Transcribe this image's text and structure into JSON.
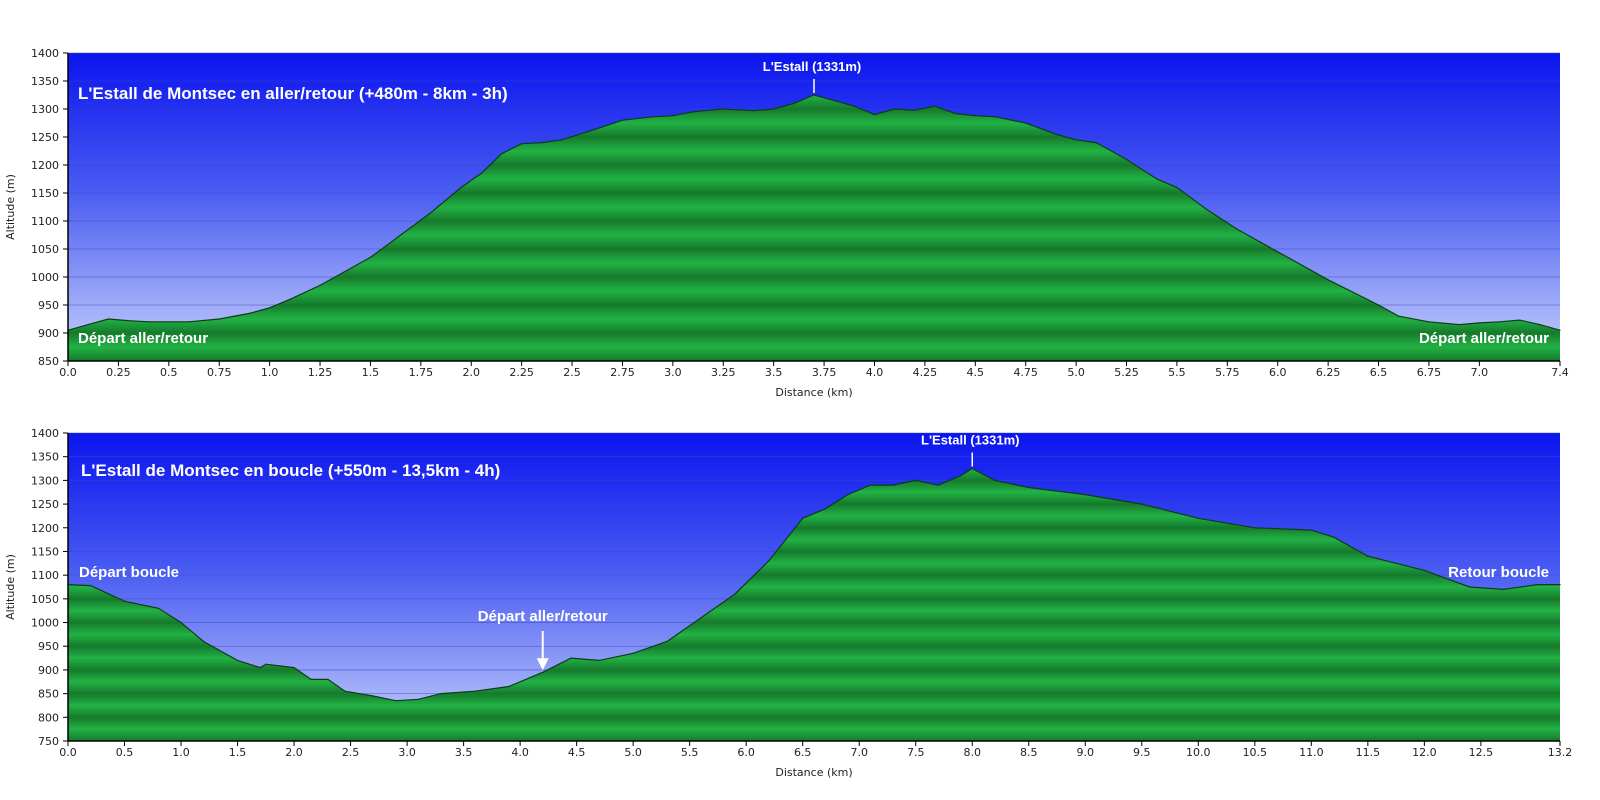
{
  "chart_data": [
    {
      "type": "area",
      "title": "L'Estall de Montsec en aller/retour (+480m - 8km - 3h)",
      "xlabel": "Distance    (km)",
      "ylabel": "Altitude (m)",
      "xlim": [
        0,
        7.4
      ],
      "ylim": [
        850,
        1400
      ],
      "xticks": [
        "0.0",
        "0.25",
        "0.5",
        "0.75",
        "1.0",
        "1.25",
        "1.5",
        "1.75",
        "2.0",
        "2.25",
        "2.5",
        "2.75",
        "3.0",
        "3.25",
        "3.5",
        "3.75",
        "4.0",
        "4.25",
        "4.5",
        "4.75",
        "5.0",
        "5.25",
        "5.5",
        "5.75",
        "6.0",
        "6.25",
        "6.5",
        "6.75",
        "7.0",
        "7.4"
      ],
      "yticks": [
        "850",
        "900",
        "950",
        "1000",
        "1050",
        "1100",
        "1150",
        "1200",
        "1250",
        "1300",
        "1350",
        "1400"
      ],
      "grid": true,
      "x": [
        0,
        0.1,
        0.2,
        0.3,
        0.4,
        0.5,
        0.6,
        0.75,
        0.9,
        1.0,
        1.1,
        1.25,
        1.5,
        1.65,
        1.8,
        1.95,
        2.05,
        2.15,
        2.25,
        2.35,
        2.45,
        2.6,
        2.75,
        2.9,
        3.0,
        3.1,
        3.25,
        3.4,
        3.5,
        3.6,
        3.7,
        3.8,
        3.9,
        4.0,
        4.1,
        4.2,
        4.3,
        4.4,
        4.5,
        4.6,
        4.75,
        4.9,
        5.0,
        5.1,
        5.25,
        5.4,
        5.5,
        5.65,
        5.8,
        6.0,
        6.25,
        6.5,
        6.6,
        6.75,
        6.9,
        7.0,
        7.1,
        7.2,
        7.3,
        7.4
      ],
      "values": [
        905,
        915,
        925,
        922,
        920,
        920,
        920,
        925,
        935,
        945,
        960,
        985,
        1035,
        1075,
        1115,
        1160,
        1185,
        1220,
        1238,
        1240,
        1245,
        1262,
        1280,
        1286,
        1288,
        1295,
        1300,
        1297,
        1300,
        1310,
        1325,
        1315,
        1305,
        1290,
        1300,
        1298,
        1305,
        1292,
        1288,
        1286,
        1275,
        1255,
        1245,
        1240,
        1210,
        1175,
        1160,
        1120,
        1085,
        1045,
        995,
        950,
        930,
        920,
        915,
        918,
        920,
        923,
        915,
        905
      ],
      "annotations": {
        "peak": {
          "label": "L'Estall (1331m)",
          "x": 3.7,
          "y": 1325
        },
        "start_left": "Départ aller/retour",
        "start_right": "Départ aller/retour"
      }
    },
    {
      "type": "area",
      "title": "L'Estall de Montsec en boucle (+550m - 13,5km - 4h)",
      "xlabel": "Distance    (km)",
      "ylabel": "Altitude (m)",
      "xlim": [
        0,
        13.2
      ],
      "ylim": [
        750,
        1400
      ],
      "xticks": [
        "0.0",
        "0.5",
        "1.0",
        "1.5",
        "2.0",
        "2.5",
        "3.0",
        "3.5",
        "4.0",
        "4.5",
        "5.0",
        "5.5",
        "6.0",
        "6.5",
        "7.0",
        "7.5",
        "8.0",
        "8.5",
        "9.0",
        "9.5",
        "10.0",
        "10.5",
        "11.0",
        "11.5",
        "12.0",
        "12.5",
        "13.2"
      ],
      "yticks": [
        "750",
        "800",
        "850",
        "900",
        "950",
        "1000",
        "1050",
        "1100",
        "1150",
        "1200",
        "1250",
        "1300",
        "1350",
        "1400"
      ],
      "grid": true,
      "x": [
        0,
        0.2,
        0.5,
        0.8,
        1.0,
        1.2,
        1.5,
        1.7,
        1.75,
        2.0,
        2.15,
        2.3,
        2.45,
        2.7,
        2.9,
        3.1,
        3.3,
        3.6,
        3.9,
        4.2,
        4.45,
        4.7,
        5.0,
        5.3,
        5.6,
        5.9,
        6.2,
        6.5,
        6.7,
        6.9,
        7.1,
        7.3,
        7.5,
        7.7,
        7.9,
        8.0,
        8.2,
        8.5,
        9.0,
        9.5,
        10.0,
        10.5,
        11.0,
        11.2,
        11.5,
        12.0,
        12.4,
        12.7,
        13.0,
        13.2
      ],
      "values": [
        1080,
        1078,
        1045,
        1030,
        1000,
        960,
        920,
        905,
        912,
        905,
        880,
        880,
        855,
        845,
        835,
        838,
        850,
        855,
        865,
        895,
        925,
        920,
        935,
        960,
        1010,
        1060,
        1130,
        1220,
        1240,
        1270,
        1290,
        1290,
        1300,
        1290,
        1310,
        1325,
        1300,
        1285,
        1270,
        1250,
        1220,
        1200,
        1195,
        1180,
        1140,
        1110,
        1075,
        1070,
        1080,
        1080
      ],
      "annotations": {
        "peak": {
          "label": "L'Estall (1331m)",
          "x": 8.0,
          "y": 1325
        },
        "start": "Départ boucle",
        "end": "Retour boucle",
        "junction": {
          "label": "Départ aller/retour",
          "x": 4.2,
          "y": 895
        }
      }
    }
  ]
}
